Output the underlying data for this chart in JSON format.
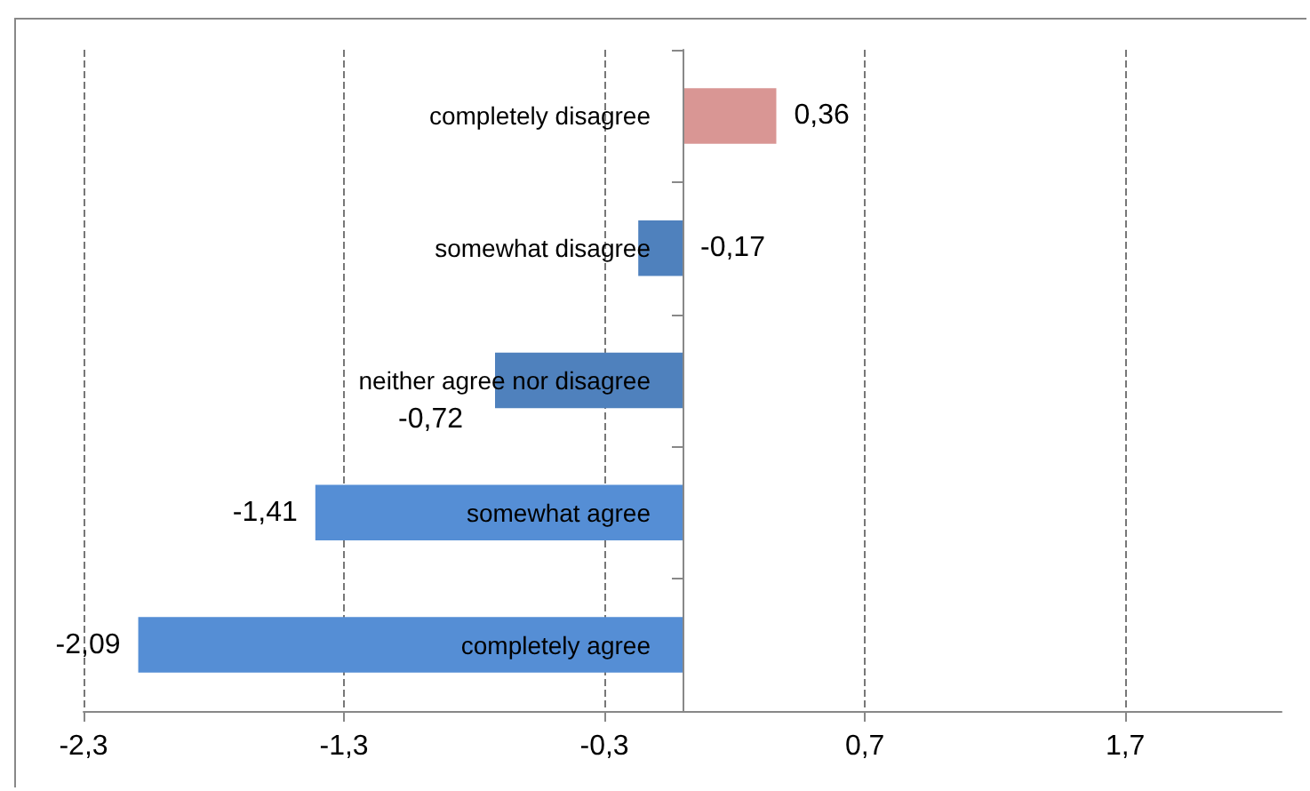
{
  "chart_data": {
    "type": "bar",
    "orientation": "horizontal",
    "categories": [
      "completely disagree",
      "somewhat disagree",
      "neither agree nor disagree",
      "somewhat agree",
      "completely agree"
    ],
    "values": [
      0.36,
      -0.17,
      -0.72,
      -1.41,
      -2.09
    ],
    "value_labels": [
      "0,36",
      "-0,17",
      "-0,72",
      "-1,41",
      "-2,09"
    ],
    "colors": [
      "#d99694",
      "#4f81bd",
      "#4f81bd",
      "#558ed5",
      "#558ed5"
    ],
    "xlim": [
      -2.3,
      2.3
    ],
    "xticks": [
      {
        "value": -2.3,
        "label": "-2,3"
      },
      {
        "value": -1.3,
        "label": "-1,3"
      },
      {
        "value": -0.3,
        "label": "-0,3"
      },
      {
        "value": 0.7,
        "label": "0,7"
      },
      {
        "value": 1.7,
        "label": "1,7"
      }
    ],
    "grid": "x",
    "line_style": "dashed"
  }
}
